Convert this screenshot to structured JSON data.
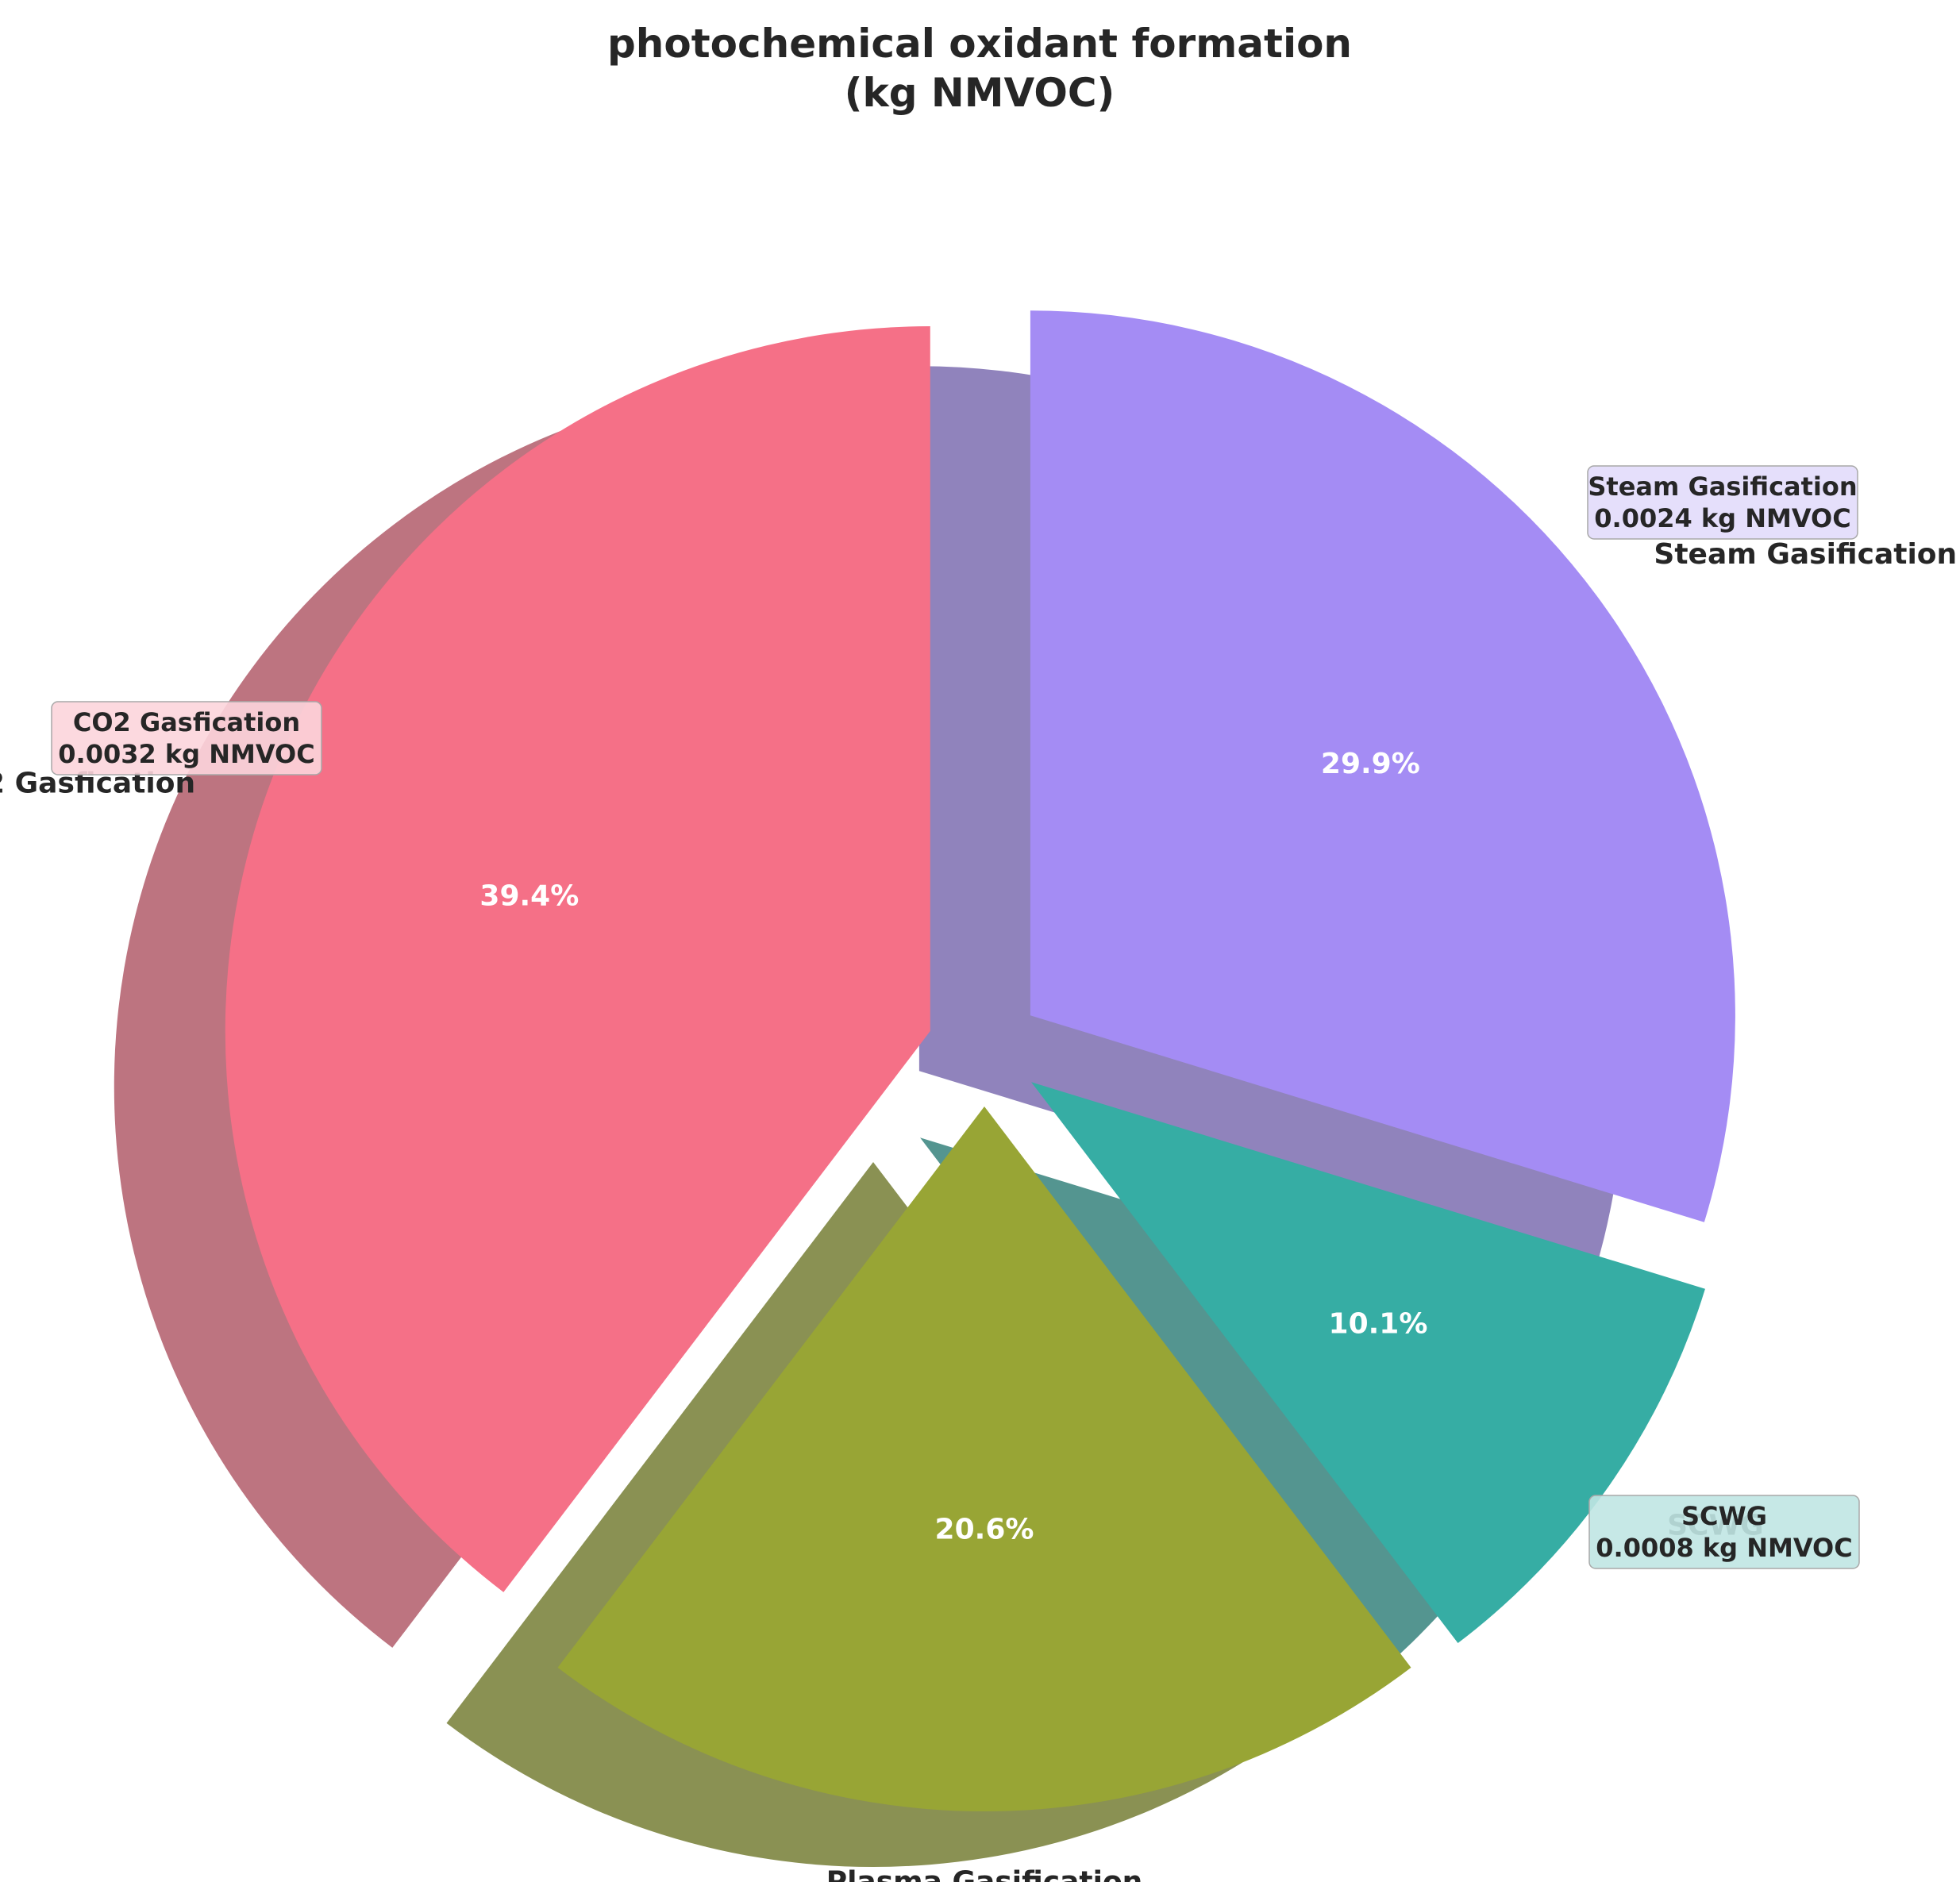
{
  "chart_data": {
    "type": "pie",
    "title": "photochemical oxidant formation\n(kg NMVOC)",
    "unit": "kg NMVOC",
    "categories": [
      "CO2 Gasfication",
      "Plasma Gasification",
      "SCWG",
      "Steam Gasification"
    ],
    "values": [
      0.0032,
      0.00167,
      0.0008,
      0.0024
    ],
    "percent_labels": [
      "39.4%",
      "20.6%",
      "10.1%",
      "29.9%"
    ],
    "annotation_boxes": [
      {
        "line1": "CO2 Gasfication",
        "line2": "0.0032 kg NMVOC",
        "category": "CO2 Gasfication"
      },
      {
        "line1": "SCWG",
        "line2": "0.0008 kg NMVOC",
        "category": "SCWG"
      },
      {
        "line1": "Steam Gasification",
        "line2": "0.0024 kg NMVOC",
        "category": "Steam Gasification"
      }
    ],
    "colors": [
      "#f57087",
      "#98a535",
      "#36ada4",
      "#a48cf4"
    ],
    "box_colors": [
      "#fcd5dc",
      "#c0e6e3",
      "#e2dcfb"
    ],
    "start_angle_deg": 90,
    "direction": "counterclockwise",
    "exploded": true,
    "shadow": true
  }
}
